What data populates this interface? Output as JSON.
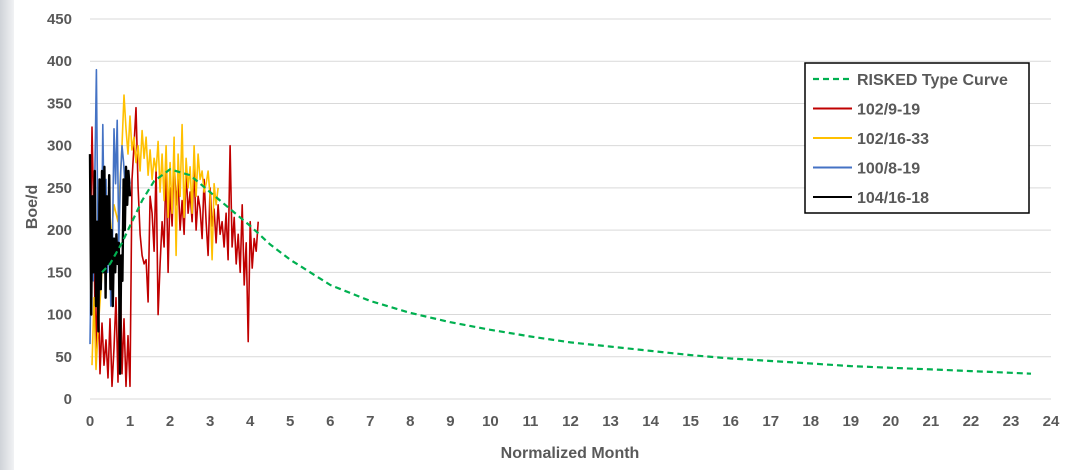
{
  "chart_data": {
    "type": "line",
    "xlabel": "Normalized Month",
    "ylabel": "Boe/d",
    "xlim": [
      0,
      24
    ],
    "ylim": [
      0,
      450
    ],
    "x_ticks": [
      "0",
      "1",
      "2",
      "3",
      "4",
      "5",
      "6",
      "7",
      "8",
      "9",
      "10",
      "11",
      "12",
      "13",
      "14",
      "15",
      "16",
      "17",
      "18",
      "19",
      "20",
      "21",
      "22",
      "23",
      "24"
    ],
    "y_ticks": [
      "0",
      "50",
      "100",
      "150",
      "200",
      "250",
      "300",
      "350",
      "400",
      "450"
    ],
    "grid": "horizontal",
    "legend_position": "top-right",
    "series": [
      {
        "name": "RISKED Type Curve",
        "color": "#00b050",
        "dashed": true,
        "x": [
          0.3,
          0.5,
          0.8,
          1.0,
          1.3,
          1.6,
          2.0,
          2.5,
          3.0,
          3.5,
          4.0,
          4.5,
          5.0,
          6.0,
          7.0,
          8.0,
          9.0,
          10.0,
          11.0,
          12.0,
          13.0,
          14.0,
          15.0,
          16.0,
          17.0,
          18.0,
          19.0,
          20.0,
          21.0,
          22.0,
          23.0,
          23.5
        ],
        "y": [
          150,
          160,
          185,
          205,
          235,
          258,
          272,
          265,
          245,
          225,
          205,
          183,
          165,
          135,
          116,
          102,
          91,
          82,
          74,
          67,
          62,
          57,
          52,
          48,
          45,
          42,
          39,
          37,
          35,
          33,
          31,
          30
        ]
      },
      {
        "name": "102/9-19",
        "color": "#c00000",
        "dashed": false,
        "x": [
          0.02,
          0.05,
          0.08,
          0.12,
          0.15,
          0.2,
          0.25,
          0.3,
          0.35,
          0.4,
          0.45,
          0.5,
          0.55,
          0.6,
          0.65,
          0.7,
          0.75,
          0.8,
          0.85,
          0.9,
          0.95,
          1.0,
          1.05,
          1.1,
          1.15,
          1.2,
          1.25,
          1.3,
          1.35,
          1.4,
          1.45,
          1.5,
          1.55,
          1.6,
          1.65,
          1.7,
          1.75,
          1.8,
          1.85,
          1.9,
          1.95,
          2.0,
          2.05,
          2.1,
          2.15,
          2.2,
          2.25,
          2.3,
          2.35,
          2.4,
          2.45,
          2.5,
          2.55,
          2.6,
          2.65,
          2.7,
          2.75,
          2.8,
          2.85,
          2.9,
          2.95,
          3.0,
          3.05,
          3.1,
          3.15,
          3.2,
          3.25,
          3.3,
          3.35,
          3.4,
          3.45,
          3.5,
          3.55,
          3.6,
          3.65,
          3.7,
          3.75,
          3.8,
          3.85,
          3.9,
          3.95,
          4.0,
          4.05,
          4.1,
          4.15,
          4.2
        ],
        "y": [
          210,
          322,
          250,
          120,
          60,
          150,
          30,
          90,
          40,
          70,
          25,
          95,
          15,
          60,
          120,
          20,
          170,
          30,
          95,
          15,
          75,
          15,
          260,
          300,
          345,
          250,
          195,
          170,
          160,
          165,
          115,
          240,
          220,
          175,
          275,
          100,
          160,
          210,
          180,
          280,
          150,
          250,
          205,
          285,
          230,
          260,
          200,
          235,
          195,
          270,
          220,
          245,
          210,
          275,
          200,
          240,
          225,
          190,
          260,
          210,
          170,
          250,
          205,
          225,
          185,
          230,
          195,
          210,
          180,
          220,
          165,
          300,
          180,
          215,
          160,
          195,
          150,
          230,
          135,
          185,
          68,
          210,
          155,
          190,
          175,
          210
        ]
      },
      {
        "name": "102/16-33",
        "color": "#ffc000",
        "dashed": false,
        "x": [
          0.05,
          0.1,
          0.15,
          0.2,
          0.3,
          0.4,
          0.5,
          0.6,
          0.7,
          0.8,
          0.85,
          0.9,
          0.95,
          1.0,
          1.05,
          1.1,
          1.15,
          1.2,
          1.25,
          1.3,
          1.35,
          1.4,
          1.45,
          1.5,
          1.55,
          1.6,
          1.65,
          1.7,
          1.75,
          1.8,
          1.85,
          1.9,
          1.95,
          2.0,
          2.05,
          2.1,
          2.15,
          2.2,
          2.25,
          2.3,
          2.35,
          2.4,
          2.45,
          2.5,
          2.55,
          2.6,
          2.65,
          2.7,
          2.75,
          2.8,
          2.85,
          2.9,
          2.95,
          3.0,
          3.05,
          3.1,
          3.15,
          3.2
        ],
        "y": [
          40,
          120,
          35,
          80,
          150,
          200,
          180,
          230,
          210,
          300,
          360,
          320,
          290,
          335,
          295,
          310,
          280,
          300,
          270,
          318,
          285,
          310,
          265,
          295,
          260,
          285,
          270,
          305,
          245,
          290,
          235,
          300,
          215,
          280,
          220,
          310,
          170,
          290,
          240,
          325,
          215,
          285,
          250,
          275,
          220,
          300,
          240,
          290,
          260,
          270,
          245,
          255,
          270,
          240,
          165,
          255,
          230,
          250
        ]
      },
      {
        "name": "100/8-19",
        "color": "#4472c4",
        "dashed": false,
        "x": [
          0.0,
          0.04,
          0.08,
          0.12,
          0.16,
          0.2,
          0.24,
          0.28,
          0.32,
          0.36,
          0.4,
          0.44,
          0.48,
          0.52,
          0.56,
          0.6,
          0.64,
          0.68,
          0.72,
          0.76,
          0.8,
          0.84,
          0.88,
          0.92,
          0.96,
          1.0
        ],
        "y": [
          65,
          210,
          140,
          260,
          390,
          175,
          250,
          130,
          325,
          190,
          260,
          150,
          210,
          110,
          180,
          320,
          255,
          330,
          185,
          260,
          300,
          280,
          250,
          230,
          270,
          255
        ]
      },
      {
        "name": "104/16-18",
        "color": "#000000",
        "dashed": false,
        "x": [
          0.0,
          0.03,
          0.06,
          0.09,
          0.12,
          0.15,
          0.18,
          0.21,
          0.24,
          0.27,
          0.3,
          0.33,
          0.36,
          0.39,
          0.42,
          0.45,
          0.48,
          0.51,
          0.54,
          0.57,
          0.6,
          0.63,
          0.66,
          0.69,
          0.72,
          0.75,
          0.78,
          0.81,
          0.84,
          0.87,
          0.9,
          0.93,
          0.96,
          1.0
        ],
        "y": [
          290,
          100,
          240,
          150,
          270,
          110,
          210,
          80,
          260,
          130,
          270,
          150,
          275,
          120,
          240,
          160,
          265,
          130,
          200,
          110,
          190,
          150,
          195,
          160,
          185,
          30,
          170,
          140,
          260,
          200,
          275,
          230,
          270,
          240
        ]
      }
    ]
  }
}
